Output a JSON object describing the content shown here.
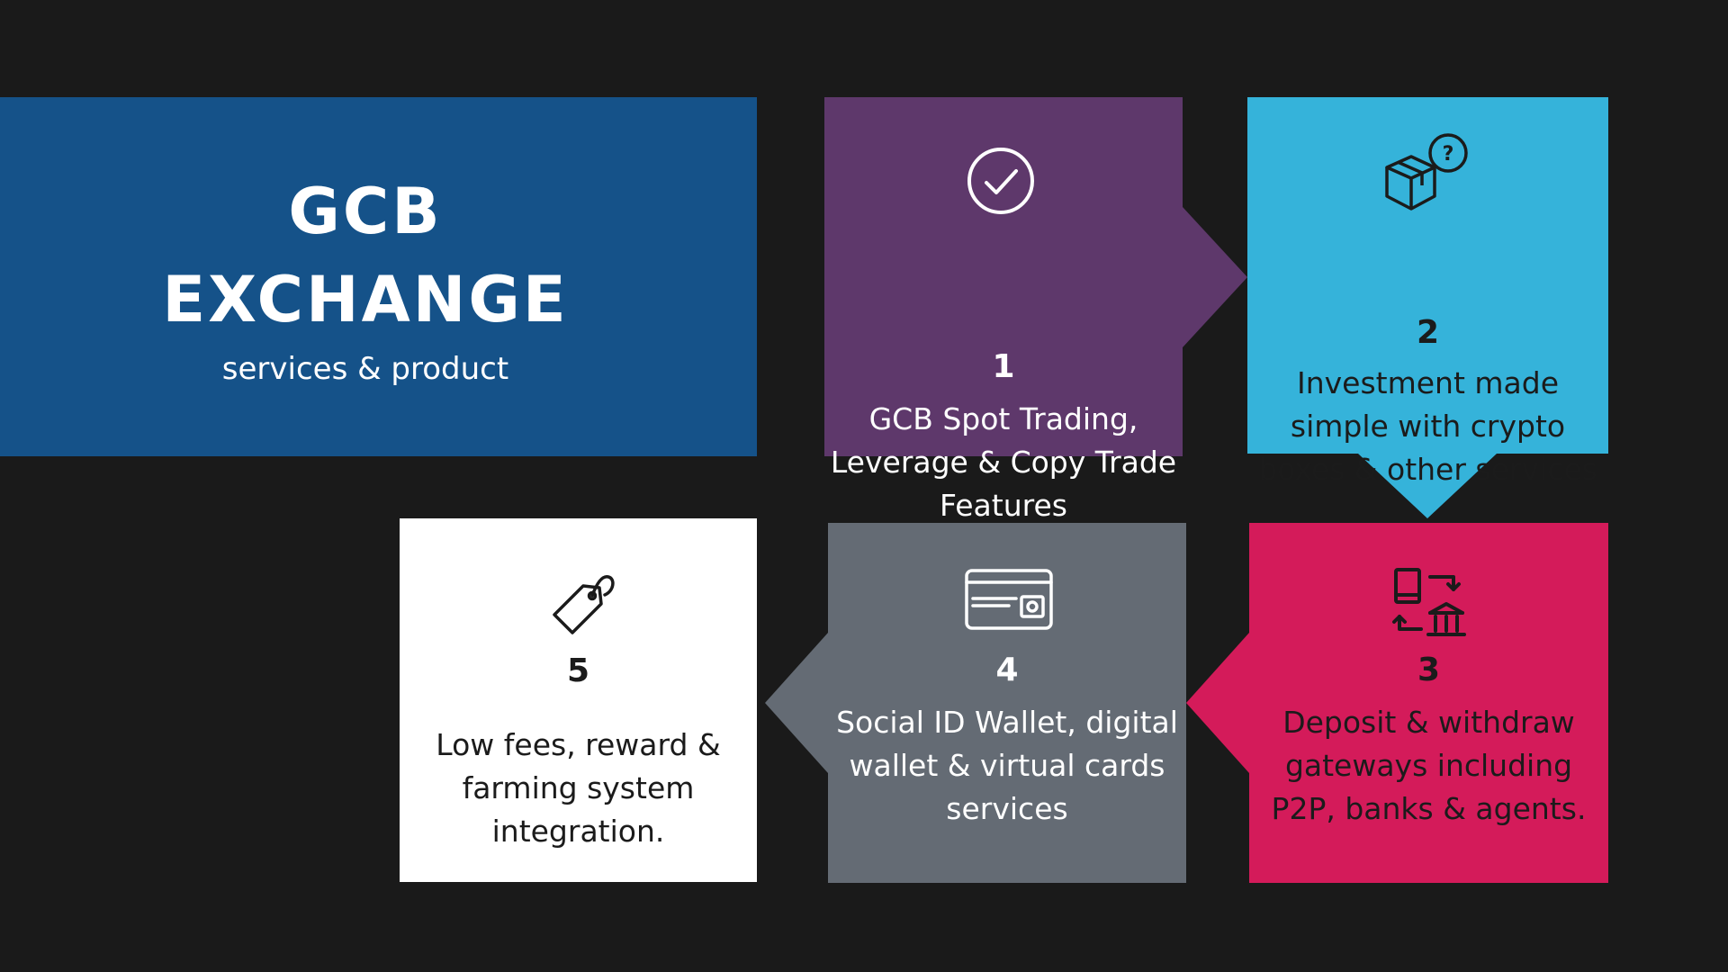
{
  "title": {
    "line1": "GCB",
    "line2": "EXCHANGE",
    "subtitle": "services & product"
  },
  "steps": [
    {
      "number": "1",
      "text": "GCB Spot Trading, Leverage & Copy Trade Features",
      "icon": "check-circle-icon",
      "color": "#5e386b"
    },
    {
      "number": "2",
      "text": "Investment made simple with crypto boxes & other services",
      "icon": "box-question-icon",
      "color": "#35b3da"
    },
    {
      "number": "3",
      "text": "Deposit & withdraw gateways including P2P, banks & agents.",
      "icon": "phone-bank-exchange-icon",
      "color": "#d41b5a"
    },
    {
      "number": "4",
      "text": "Social ID Wallet, digital wallet & virtual cards services",
      "icon": "credit-card-icon",
      "color": "#646b74"
    },
    {
      "number": "5",
      "text": "Low fees, reward & farming system integration.",
      "icon": "price-tag-icon",
      "color": "#ffffff"
    }
  ],
  "colors": {
    "background": "#1a1a1a",
    "title_block": "#155289"
  }
}
